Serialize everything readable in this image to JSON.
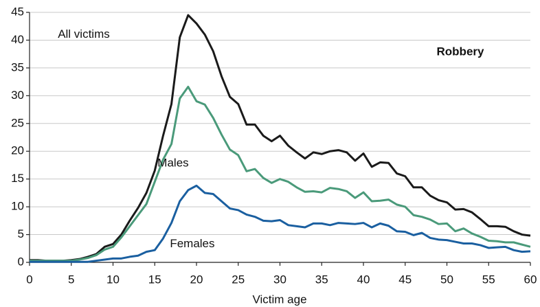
{
  "chart_data": {
    "type": "line",
    "title": "Robbery",
    "xlabel": "Victim age",
    "x": [
      0,
      1,
      2,
      3,
      4,
      5,
      6,
      7,
      8,
      9,
      10,
      11,
      12,
      13,
      14,
      15,
      16,
      17,
      18,
      19,
      20,
      21,
      22,
      23,
      24,
      25,
      26,
      27,
      28,
      29,
      30,
      31,
      32,
      33,
      34,
      35,
      36,
      37,
      38,
      39,
      40,
      41,
      42,
      43,
      44,
      45,
      46,
      47,
      48,
      49,
      50,
      51,
      52,
      53,
      54,
      55,
      56,
      57,
      58,
      59,
      60
    ],
    "series": [
      {
        "name": "All victims",
        "color": "#1a1a1a",
        "values": [
          0.4,
          0.4,
          0.3,
          0.3,
          0.3,
          0.4,
          0.6,
          1,
          1.5,
          2.8,
          3.3,
          5,
          7.5,
          9.8,
          12.5,
          16.5,
          22.8,
          28.5,
          40.5,
          44.5,
          43,
          41,
          38,
          33.5,
          29.8,
          28.5,
          24.8,
          24.8,
          22.8,
          21.8,
          22.8,
          21,
          19.8,
          18.7,
          19.8,
          19.5,
          20,
          20.2,
          19.8,
          18.3,
          19.6,
          17.2,
          18,
          17.9,
          16,
          15.5,
          13.5,
          13.5,
          12,
          11.2,
          10.8,
          9.5,
          9.6,
          9,
          7.8,
          6.5,
          6.5,
          6.4,
          5.6,
          5,
          4.8
        ]
      },
      {
        "name": "Males",
        "color": "#4a9a7a",
        "values": [
          0.3,
          0.3,
          0.3,
          0.3,
          0.3,
          0.3,
          0.5,
          0.8,
          1.3,
          2.3,
          2.8,
          4.5,
          6.5,
          8.5,
          10.5,
          14.5,
          18.5,
          21.3,
          29.5,
          31.6,
          29,
          28.4,
          26,
          23,
          20.3,
          19.3,
          16.4,
          16.8,
          15.2,
          14.3,
          15,
          14.5,
          13.5,
          12.7,
          12.8,
          12.6,
          13.4,
          13.2,
          12.8,
          11.6,
          12.6,
          11,
          11.1,
          11.3,
          10.4,
          10,
          8.5,
          8.2,
          7.7,
          6.9,
          7,
          5.6,
          6.1,
          5.2,
          4.6,
          3.9,
          3.8,
          3.6,
          3.6,
          3.2,
          2.8
        ]
      },
      {
        "name": "Females",
        "color": "#1a5fa0",
        "values": [
          0.1,
          0.1,
          0.1,
          0.1,
          0.1,
          0.1,
          0.1,
          0.1,
          0.3,
          0.5,
          0.7,
          0.7,
          1,
          1.2,
          1.9,
          2.2,
          4.3,
          7.1,
          11,
          13,
          13.8,
          12.5,
          12.3,
          11,
          9.7,
          9.4,
          8.6,
          8.2,
          7.5,
          7.4,
          7.6,
          6.7,
          6.5,
          6.3,
          7,
          7,
          6.7,
          7.1,
          7,
          6.9,
          7.1,
          6.3,
          7,
          6.6,
          5.6,
          5.5,
          4.9,
          5.3,
          4.4,
          4.1,
          4,
          3.7,
          3.4,
          3.4,
          3.1,
          2.6,
          2.7,
          2.8,
          2.2,
          1.9,
          2
        ]
      }
    ],
    "xlim": [
      0,
      60
    ],
    "xticks": [
      0,
      5,
      10,
      15,
      20,
      25,
      30,
      35,
      40,
      45,
      50,
      55,
      60
    ],
    "ylim": [
      0,
      45
    ],
    "yticks": [
      0,
      5,
      10,
      15,
      20,
      25,
      30,
      35,
      40,
      45
    ],
    "grid": true
  }
}
